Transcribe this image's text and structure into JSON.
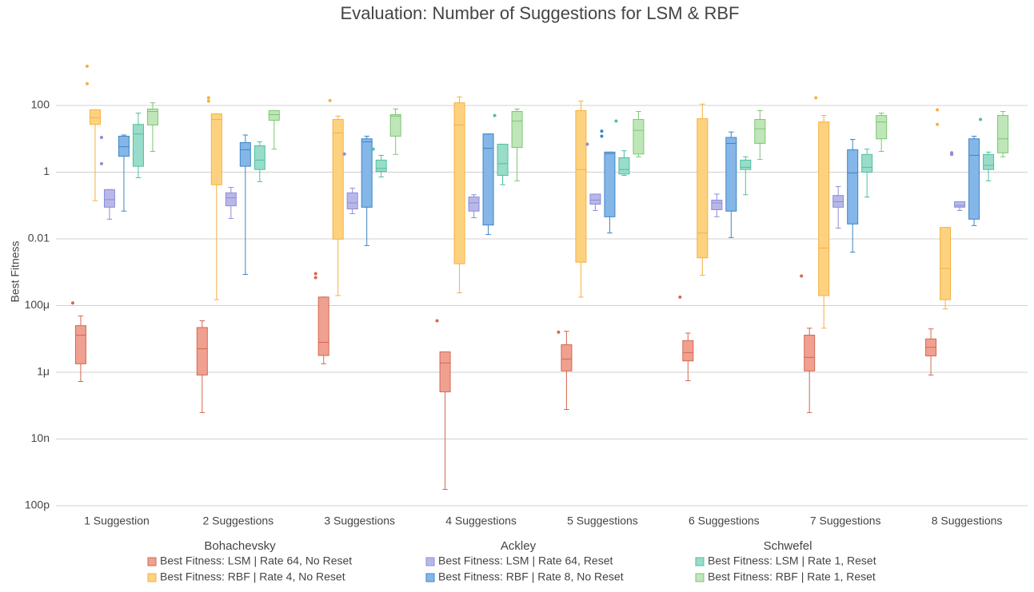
{
  "chart_data": {
    "type": "box",
    "title": "Evaluation: Number of Suggestions for LSM & RBF",
    "ylabel": "Best Fitness",
    "yscale": "log",
    "grid": true,
    "legend_position": "bottom",
    "ylim": [
      1e-10,
      10000
    ],
    "yticks": [
      {
        "value": 1e-10,
        "label": "100p"
      },
      {
        "value": 1e-08,
        "label": "10n"
      },
      {
        "value": 1e-06,
        "label": "1μ"
      },
      {
        "value": 0.0001,
        "label": "100μ"
      },
      0.01,
      1,
      100
    ],
    "categories": [
      "1 Suggestion",
      "2 Suggestions",
      "3 Suggestions",
      "4 Suggestions",
      "5 Suggestions",
      "6 Suggestions",
      "7 Suggestions",
      "8 Suggestions"
    ],
    "legend_groups": [
      "Bohachevsky",
      "Ackley",
      "Schwefel"
    ],
    "series": [
      {
        "name": "Best Fitness: LSM | Rate 64, No Reset",
        "group": 0,
        "color": "#f0a090",
        "line_color": "#d4674f",
        "min": [
          5.3e-07,
          6.2e-08,
          1.8e-06,
          3.1e-10,
          7.7e-08,
          5.6e-07,
          6.2e-08,
          8.3e-07
        ],
        "q1": [
          1.8e-06,
          8.3e-07,
          3.2e-06,
          2.6e-07,
          1.1e-06,
          2.2e-06,
          1.1e-06,
          3.1e-06
        ],
        "median": [
          1.3e-05,
          5.1e-06,
          7.9e-06,
          1.9e-06,
          2.5e-06,
          3.9e-06,
          2.8e-06,
          5.6e-06
        ],
        "q3": [
          2.5e-05,
          2.2e-05,
          0.00018,
          4.1e-06,
          6.7e-06,
          8.9e-06,
          1.3e-05,
          1e-05
        ],
        "max": [
          4.9e-05,
          3.5e-05,
          0.00018,
          4.1e-06,
          1.7e-05,
          1.5e-05,
          2.1e-05,
          2e-05
        ],
        "outliers": [
          [
            0.00012
          ],
          [],
          [
            0.00091,
            0.00069
          ],
          [
            3.5e-05
          ],
          [
            1.6e-05
          ],
          [
            0.00018
          ],
          [
            0.00077
          ],
          []
        ]
      },
      {
        "name": "Best Fitness: RBF | Rate 4, No Reset",
        "group": 0,
        "color": "#fdd27f",
        "line_color": "#f5b041",
        "min": [
          0.14,
          0.00015,
          0.0002,
          0.00024,
          0.00018,
          0.00081,
          2.1e-05,
          7.9e-05
        ],
        "q1": [
          27,
          0.42,
          0.0098,
          0.0018,
          0.002,
          0.0027,
          0.0002,
          0.00015
        ],
        "median": [
          43,
          38,
          15,
          26,
          1.2,
          0.015,
          0.0053,
          0.0013
        ],
        "q3": [
          74,
          56,
          38,
          120,
          70,
          40,
          32,
          0.022
        ],
        "max": [
          74,
          56,
          48,
          180,
          135,
          110,
          50,
          0.022
        ],
        "outliers": [
          [
            1500,
            450
          ],
          [
            170,
            135
          ],
          [
            140
          ],
          [],
          [],
          [],
          [
            170
          ],
          [
            74,
            27
          ]
        ]
      },
      {
        "name": "Best Fitness: LSM | Rate 64, Reset",
        "group": 1,
        "color": "#b8b8e8",
        "line_color": "#8c8cd9",
        "min": [
          0.039,
          0.041,
          0.057,
          0.043,
          0.071,
          0.046,
          0.021,
          0.071
        ],
        "q1": [
          0.089,
          0.098,
          0.079,
          0.068,
          0.11,
          0.075,
          0.089,
          0.089
        ],
        "median": [
          0.15,
          0.17,
          0.12,
          0.12,
          0.145,
          0.12,
          0.13,
          0.1
        ],
        "q3": [
          0.3,
          0.24,
          0.24,
          0.18,
          0.22,
          0.145,
          0.2,
          0.13
        ],
        "max": [
          0.3,
          0.35,
          0.33,
          0.21,
          0.22,
          0.22,
          0.37,
          0.13
        ],
        "outliers": [
          [
            1.8,
            11
          ],
          [],
          [
            3.5
          ],
          [],
          [
            6.9
          ],
          [],
          [],
          [
            3.8,
            3.4
          ]
        ]
      },
      {
        "name": "Best Fitness: RBF | Rate 8, No Reset",
        "group": 1,
        "color": "#85b6e8",
        "line_color": "#3d85c6",
        "min": [
          0.068,
          0.00086,
          0.0063,
          0.0135,
          0.015,
          0.011,
          0.004,
          0.025
        ],
        "q1": [
          3.0,
          1.5,
          0.089,
          0.026,
          0.046,
          0.068,
          0.028,
          0.039
        ],
        "median": [
          5.8,
          4.7,
          8.1,
          5.2,
          3.6,
          7.3,
          0.95,
          3.2
        ],
        "q3": [
          12,
          7.7,
          10,
          14,
          4.0,
          11,
          4.7,
          10
        ],
        "max": [
          13,
          13,
          12,
          14,
          4.0,
          16,
          9.6,
          12
        ],
        "outliers": [
          [],
          [],
          [],
          [],
          [
            17,
            12
          ],
          [],
          [],
          []
        ]
      },
      {
        "name": "Best Fitness: LSM | Rate 1, Reset",
        "group": 2,
        "color": "#98dcc9",
        "line_color": "#4fbfa0",
        "min": [
          0.68,
          0.52,
          0.72,
          0.42,
          0.8,
          0.21,
          0.18,
          0.55
        ],
        "q1": [
          1.5,
          1.2,
          1.05,
          0.8,
          0.88,
          1.2,
          1.0,
          1.2
        ],
        "median": [
          14,
          2.3,
          1.3,
          1.8,
          1.2,
          1.4,
          1.4,
          1.6
        ],
        "q3": [
          27,
          6.2,
          2.3,
          6.9,
          2.7,
          2.3,
          3.4,
          3.4
        ],
        "max": [
          59,
          8.1,
          3.2,
          6.9,
          4.4,
          2.9,
          4.9,
          4.0
        ],
        "outliers": [
          [],
          [],
          [
            4.9
          ],
          [
            50
          ],
          [
            34
          ],
          [],
          [],
          [
            38
          ]
        ]
      },
      {
        "name": "Best Fitness: RBF | Rate 1, Reset",
        "group": 2,
        "color": "#bfe6b8",
        "line_color": "#7cc672",
        "min": [
          4.2,
          4.9,
          3.4,
          0.55,
          2.9,
          2.4,
          4.2,
          2.9
        ],
        "q1": [
          26,
          36,
          12,
          5.5,
          3.5,
          7.3,
          10,
          3.8
        ],
        "median": [
          66,
          53,
          48,
          34,
          18,
          20,
          32,
          10
        ],
        "q3": [
          78,
          70,
          53,
          66,
          38,
          38,
          50,
          50
        ],
        "max": [
          120,
          70,
          78,
          78,
          66,
          70,
          59,
          66
        ],
        "outliers": [
          [],
          [],
          [],
          [],
          [],
          [],
          [],
          []
        ]
      }
    ]
  }
}
